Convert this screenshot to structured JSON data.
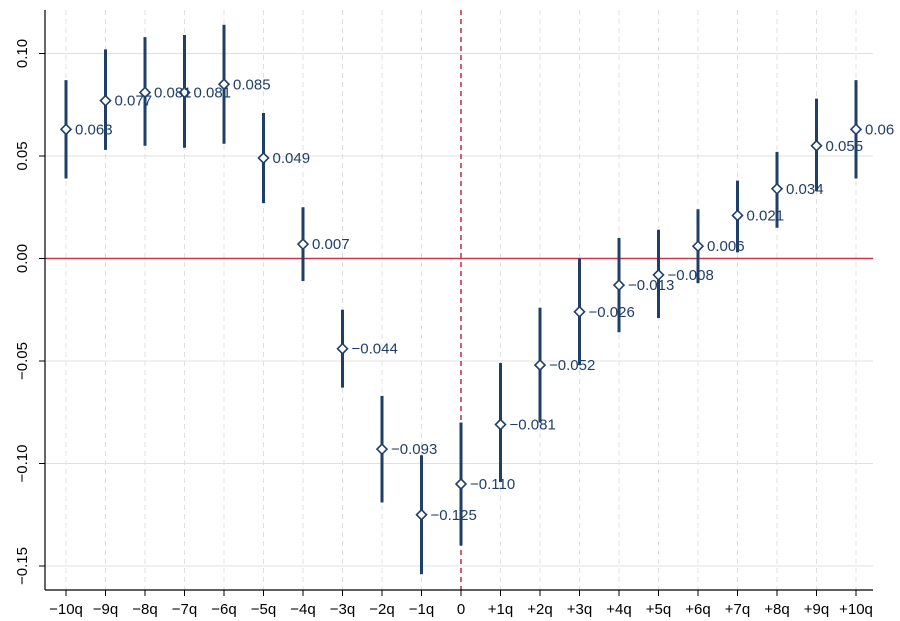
{
  "chart_data": {
    "type": "scatter",
    "title": "",
    "xlabel": "",
    "ylabel": "",
    "categories": [
      "−10q",
      "−9q",
      "−8q",
      "−7q",
      "−6q",
      "−5q",
      "−4q",
      "−3q",
      "−2q",
      "−1q",
      "0",
      "+1q",
      "+2q",
      "+3q",
      "+4q",
      "+5q",
      "+6q",
      "+7q",
      "+8q",
      "+9q",
      "+10q"
    ],
    "series": [
      {
        "values": [
          0.063,
          0.077,
          0.081,
          0.081,
          0.085,
          0.049,
          0.007,
          -0.044,
          -0.093,
          -0.125,
          -0.11,
          -0.081,
          -0.052,
          -0.026,
          -0.013,
          -0.008,
          0.006,
          0.021,
          0.034,
          0.055,
          0.063
        ],
        "ci_low": [
          0.039,
          0.053,
          0.055,
          0.054,
          0.056,
          0.027,
          -0.011,
          -0.063,
          -0.119,
          -0.154,
          -0.14,
          -0.109,
          -0.08,
          -0.052,
          -0.036,
          -0.029,
          -0.012,
          0.003,
          0.015,
          0.033,
          0.039
        ],
        "ci_high": [
          0.087,
          0.102,
          0.108,
          0.109,
          0.114,
          0.071,
          0.025,
          -0.025,
          -0.067,
          -0.096,
          -0.08,
          -0.051,
          -0.024,
          0.0,
          0.01,
          0.014,
          0.024,
          0.038,
          0.052,
          0.078,
          0.087
        ],
        "labels": [
          "0.063",
          "0.077",
          "0.081",
          "0.081",
          "0.085",
          "0.049",
          "0.007",
          "−0.044",
          "−0.093",
          "−0.125",
          "−0.110",
          "−0.081",
          "−0.052",
          "−0.026",
          "−0.013",
          "−0.008",
          "0.006",
          "0.021",
          "0.034",
          "0.055",
          "0.06"
        ]
      }
    ],
    "yticks": [
      "0.10",
      "0.05",
      "0.00",
      "−0.05",
      "−0.10",
      "−0.15"
    ],
    "ytick_values": [
      0.1,
      0.05,
      0.0,
      -0.05,
      -0.1,
      -0.15
    ],
    "ylim": [
      -0.16,
      0.12
    ],
    "reference_y": 0,
    "reference_x": "0",
    "grid": true,
    "colors": {
      "series": "#1f3f66",
      "reference": "#c8374d",
      "grid": "#e0e0e0"
    }
  }
}
